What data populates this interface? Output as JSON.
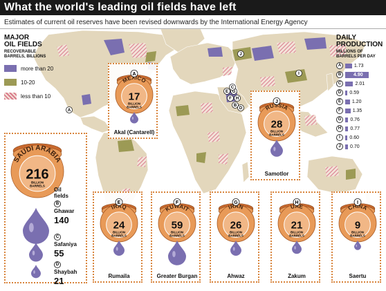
{
  "title": "What the world's leading oil fields have left",
  "subtitle": "Estimates of current oil reserves have been revised downwards by the International Energy Agency",
  "legend": {
    "title": [
      "MAJOR",
      "OIL FIELDS"
    ],
    "subtitle": [
      "RECOVERABLE",
      "BARRELS, BILLIONS"
    ],
    "items": [
      {
        "label": "more than 20",
        "color": "#7a6fb0",
        "pattern": "solid"
      },
      {
        "label": "10-20",
        "color": "#9c9a55",
        "pattern": "solid"
      },
      {
        "label": "less than 10",
        "color": "#d97b8c",
        "pattern": "hatch"
      }
    ]
  },
  "production": {
    "title": [
      "DAILY",
      "PRODUCTION"
    ],
    "subtitle": [
      "MILLIONS OF",
      "BARRELS PER DAY"
    ]
  },
  "unit_billion": "BILLION",
  "unit_barrels": "BARRELS",
  "colors": {
    "land": "#e3d7bc",
    "barrel": "#e89a58",
    "barrel_dark": "#c9692e",
    "drop": "#7a6fb0",
    "box": "#d8833a",
    "water": "#ffffff"
  },
  "chart_data": {
    "type": "bar",
    "title": "DAILY PRODUCTION",
    "ylabel": "MILLIONS OF BARRELS PER DAY",
    "categories": [
      "A",
      "B",
      "C",
      "D",
      "E",
      "F",
      "G",
      "H",
      "I",
      "J"
    ],
    "values": [
      1.73,
      4.9,
      2.01,
      0.59,
      1.2,
      1.35,
      0.76,
      0.77,
      0.6,
      0.7
    ],
    "value_labels": [
      "1.73",
      "4.90",
      "2.01",
      "0.59",
      "1.20",
      "1.35",
      "0.76",
      "0.77",
      "0.60",
      "0.70"
    ],
    "highlight": "B"
  },
  "countries": [
    {
      "letter": "A",
      "country": "MEXICO",
      "reserves": "17",
      "field": "Akal (Cantarell)"
    },
    {
      "letter": "J",
      "country": "RUSSIA",
      "reserves": "28",
      "field": "Samotlor"
    },
    {
      "letter": "",
      "country": "SAUDI ARABIA",
      "reserves": "216",
      "field": ""
    },
    {
      "letter": "E",
      "country": "IRAQ",
      "reserves": "24",
      "field": "Rumaila"
    },
    {
      "letter": "F",
      "country": "KUWAIT",
      "reserves": "59",
      "field": "Greater Burgan"
    },
    {
      "letter": "G",
      "country": "IRAN",
      "reserves": "26",
      "field": "Ahwaz"
    },
    {
      "letter": "H",
      "country": "UAE",
      "reserves": "21",
      "field": "Zakum"
    },
    {
      "letter": "I",
      "country": "CHINA",
      "reserves": "9",
      "field": "Saertu"
    }
  ],
  "saudi_fields": {
    "heading": [
      "Oil",
      "fields"
    ],
    "items": [
      {
        "letter": "B",
        "name": "Ghawar",
        "value": "140"
      },
      {
        "letter": "C",
        "name": "Safaniya",
        "value": "55"
      },
      {
        "letter": "D",
        "name": "Shaybah",
        "value": "21"
      }
    ]
  },
  "map_markers": [
    "A",
    "I",
    "J",
    "E",
    "G",
    "F",
    "H",
    "C",
    "B",
    "D"
  ]
}
